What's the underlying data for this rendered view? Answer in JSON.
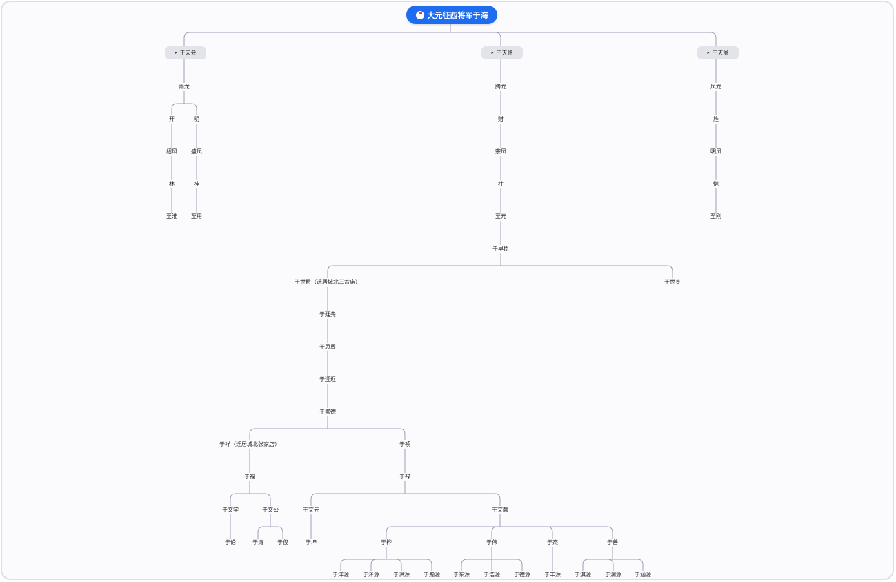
{
  "root": {
    "label": "大元征西将军于海",
    "icon": "flag-icon"
  },
  "branches": [
    {
      "label": "于天会",
      "icon": "flag-icon"
    },
    {
      "label": "于天临",
      "icon": "flag-icon"
    },
    {
      "label": "于天爵",
      "icon": "flag-icon"
    }
  ],
  "nodes": {
    "n_yulong": "雨龙",
    "n_kai": "开",
    "n_ming": "明",
    "n_zhaofeng": "绍风",
    "n_shengfeng": "盛凤",
    "n_lin": "林",
    "n_gui1": "桂",
    "n_zhihuai": "至淮",
    "n_zhiyong": "至用",
    "n_tenglong": "腾龙",
    "n_cai": "财",
    "n_zongfeng": "宗凤",
    "n_zhu": "柱",
    "n_zhiyuan": "至元",
    "n_fenglong": "凤龙",
    "n_jing": "旌",
    "n_mingfeng": "明凤",
    "n_kai2": "恺",
    "n_zhigang": "至刚",
    "n_yuzaochen": "于早臣",
    "n_yushijue": "于世爵（迁居城北三岔庙）",
    "n_yushixiang": "于世乡",
    "n_yutingxian": "于廷先",
    "n_yusizhou": "于思周",
    "n_yuyingjin": "于迎近",
    "n_yuchongde": "于崇德",
    "n_yuxiang": "于祥（迁居城北张家店）",
    "n_yuzhen": "于祯",
    "n_yufu": "于福",
    "n_yulu": "于禄",
    "n_yuwenxue": "于文学",
    "n_yuwengong": "于文公",
    "n_yuwenyuan": "于文元",
    "n_yuwenxian": "于文献",
    "n_yulun": "于伦",
    "n_yutao": "于涛",
    "n_yujun": "于俊",
    "n_yukun": "于坤",
    "n_yuhua": "于桦",
    "n_yuwei": "于伟",
    "n_yujie": "于杰",
    "n_yushan": "于善",
    "n_yuyangyuan": "于洋源",
    "n_yuzeyuan": "于泽源",
    "n_yuhongyuan": "于洪源",
    "n_yuhanyuan": "于瀚源",
    "n_yudongyuan": "于东源",
    "n_yuhaoyuan": "于浩源",
    "n_yudeyuan": "于德源",
    "n_yufengyuan": "于丰源",
    "n_yuqiyuan": "于淇源",
    "n_yuyuanyuan": "于渊源",
    "n_yuhanyuan2": "于涵源"
  },
  "colors": {
    "root": "#1e6cf0",
    "branch": "#e3e4ea",
    "line": "#9c9cbc",
    "background": "#fbfbfd",
    "text": "#222222"
  }
}
